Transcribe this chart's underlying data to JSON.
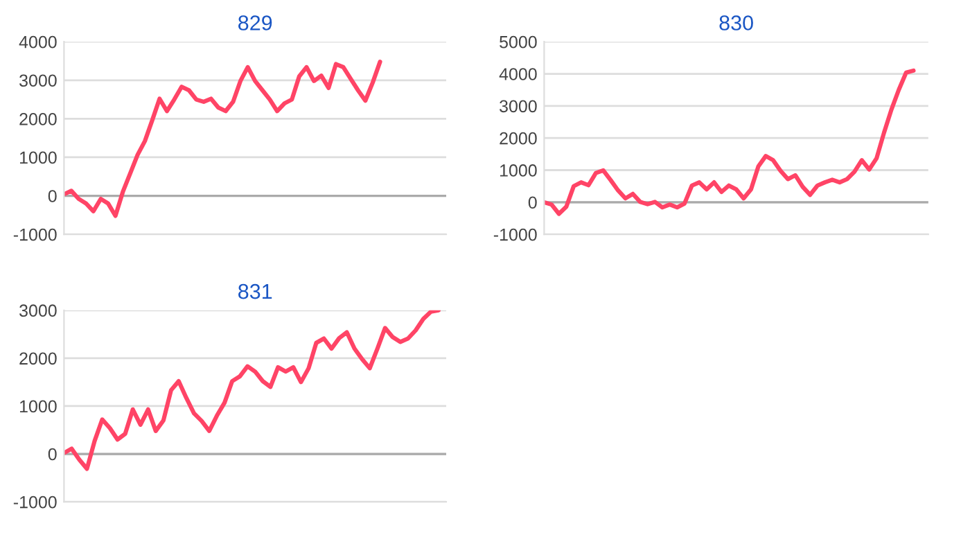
{
  "chart_data": [
    {
      "type": "line",
      "title": "829",
      "categories": [
        null,
        null,
        null,
        null,
        null,
        null,
        null,
        null,
        null,
        null,
        null,
        null,
        null,
        null,
        null,
        null,
        null,
        null,
        null,
        null,
        null,
        null,
        null,
        null,
        null,
        null,
        null,
        null,
        null,
        null,
        null,
        null,
        null,
        null,
        null,
        null,
        null,
        null,
        null,
        null,
        null,
        null,
        null,
        null,
        null,
        null,
        null,
        null,
        null,
        null,
        null,
        null,
        null
      ],
      "series": [
        {
          "color": "#ff4466",
          "values": [
            40,
            130,
            -80,
            -200,
            -400,
            -80,
            -200,
            -520,
            100,
            580,
            1060,
            1420,
            1960,
            2520,
            2200,
            2500,
            2830,
            2740,
            2500,
            2440,
            2520,
            2290,
            2200,
            2440,
            2980,
            3340,
            2980,
            2740,
            2500,
            2200,
            2400,
            2500,
            3100,
            3340,
            2980,
            3120,
            2800,
            3420,
            3340,
            3040,
            2740,
            2470,
            2940,
            3480,
            null,
            null,
            null,
            null,
            null,
            null,
            null,
            null,
            null
          ]
        }
      ],
      "ylim": [
        -1000,
        4000
      ],
      "yticks": [
        -1000,
        0,
        1000,
        2000,
        3000,
        4000
      ],
      "grid": "y",
      "tick_labels": "y",
      "ref_lines": [
        {
          "axis": "y",
          "value": 0,
          "color": "#aaaaaa"
        }
      ]
    },
    {
      "type": "line",
      "title": "830",
      "categories": [
        null,
        null,
        null,
        null,
        null,
        null,
        null,
        null,
        null,
        null,
        null,
        null,
        null,
        null,
        null,
        null,
        null,
        null,
        null,
        null,
        null,
        null,
        null,
        null,
        null,
        null,
        null,
        null,
        null,
        null,
        null,
        null,
        null,
        null,
        null,
        null,
        null,
        null,
        null,
        null,
        null,
        null,
        null,
        null,
        null,
        null,
        null,
        null,
        null,
        null,
        null,
        null,
        null
      ],
      "series": [
        {
          "color": "#ff4466",
          "values": [
            0,
            -70,
            -360,
            -140,
            500,
            620,
            530,
            910,
            990,
            690,
            370,
            120,
            260,
            10,
            -60,
            10,
            -160,
            -70,
            -160,
            -40,
            520,
            620,
            400,
            620,
            320,
            520,
            400,
            120,
            400,
            1120,
            1440,
            1310,
            980,
            720,
            840,
            480,
            230,
            520,
            620,
            700,
            620,
            720,
            950,
            1310,
            1020,
            1370,
            2160,
            2880,
            3500,
            4040,
            4100,
            null,
            null
          ]
        }
      ],
      "ylim": [
        -1000,
        5000
      ],
      "yticks": [
        -1000,
        0,
        1000,
        2000,
        3000,
        4000,
        5000
      ],
      "grid": "y",
      "tick_labels": "y",
      "ref_lines": [
        {
          "axis": "y",
          "value": 0,
          "color": "#aaaaaa"
        }
      ]
    },
    {
      "type": "line",
      "title": "831",
      "categories": [
        null,
        null,
        null,
        null,
        null,
        null,
        null,
        null,
        null,
        null,
        null,
        null,
        null,
        null,
        null,
        null,
        null,
        null,
        null,
        null,
        null,
        null,
        null,
        null,
        null,
        null,
        null,
        null,
        null,
        null,
        null,
        null,
        null,
        null,
        null,
        null,
        null,
        null,
        null,
        null,
        null,
        null,
        null,
        null,
        null,
        null,
        null,
        null,
        null,
        null,
        null
      ],
      "series": [
        {
          "color": "#ff4466",
          "values": [
            20,
            110,
            -120,
            -310,
            270,
            720,
            540,
            300,
            420,
            930,
            610,
            930,
            480,
            700,
            1330,
            1520,
            1170,
            850,
            690,
            480,
            800,
            1070,
            1520,
            1620,
            1830,
            1720,
            1520,
            1400,
            1810,
            1720,
            1810,
            1500,
            1790,
            2320,
            2410,
            2200,
            2420,
            2540,
            2200,
            1980,
            1790,
            2200,
            2630,
            2440,
            2340,
            2410,
            2580,
            2820,
            2970,
            3000,
            null
          ]
        }
      ],
      "ylim": [
        -1000,
        3000
      ],
      "yticks": [
        -1000,
        0,
        1000,
        2000,
        3000
      ],
      "grid": "y",
      "tick_labels": "y",
      "ref_lines": [
        {
          "axis": "y",
          "value": 0,
          "color": "#aaaaaa"
        }
      ]
    }
  ]
}
